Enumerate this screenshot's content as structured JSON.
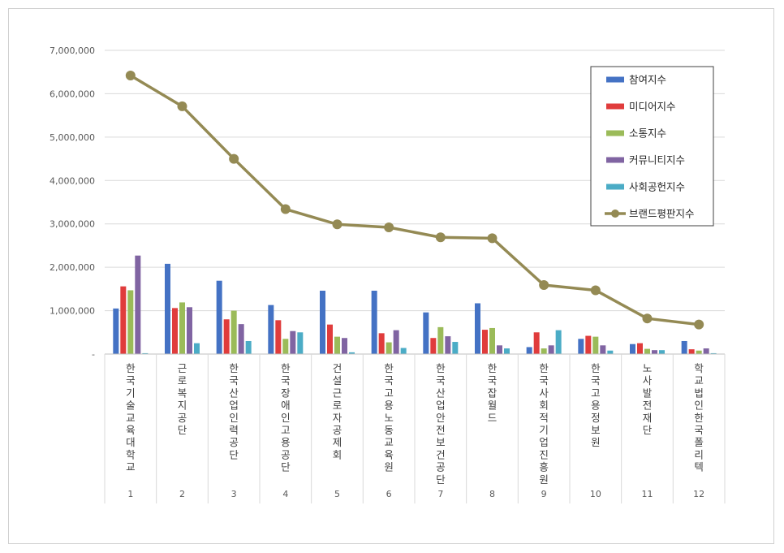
{
  "chart_data": {
    "type": "bar",
    "title": "",
    "xlabel": "",
    "ylabel": "",
    "ylim": [
      0,
      7000000
    ],
    "y_ticks": [
      "-",
      "1,000,000",
      "2,000,000",
      "3,000,000",
      "4,000,000",
      "5,000,000",
      "6,000,000",
      "7,000,000"
    ],
    "grid": true,
    "legend_position": "top-right",
    "categories": [
      "한국기술교육대학교",
      "근로복지공단",
      "한국산업인력공단",
      "한국장애인고용공단",
      "건설근로자공제회",
      "한국고용노동교육원",
      "한국산업안전보건공단",
      "한국잡월드",
      "한국사회적기업진흥원",
      "한국고용정보원",
      "노사발전재단",
      "학교법인한국폴리텍"
    ],
    "ranks": [
      "1",
      "2",
      "3",
      "4",
      "5",
      "6",
      "7",
      "8",
      "9",
      "10",
      "11",
      "12"
    ],
    "series": [
      {
        "name": "참여지수",
        "type": "bar",
        "color": "#4472C4",
        "values": [
          1050000,
          2080000,
          1690000,
          1130000,
          1460000,
          1460000,
          960000,
          1170000,
          160000,
          350000,
          230000,
          300000
        ]
      },
      {
        "name": "미디어지수",
        "type": "bar",
        "color": "#E03C3C",
        "values": [
          1560000,
          1060000,
          800000,
          780000,
          680000,
          480000,
          370000,
          560000,
          500000,
          420000,
          250000,
          110000
        ]
      },
      {
        "name": "소통지수",
        "type": "bar",
        "color": "#9BBB59",
        "values": [
          1470000,
          1190000,
          1000000,
          350000,
          400000,
          270000,
          620000,
          600000,
          130000,
          400000,
          120000,
          80000
        ]
      },
      {
        "name": "커뮤니티지수",
        "type": "bar",
        "color": "#8064A2",
        "values": [
          2270000,
          1080000,
          690000,
          530000,
          370000,
          550000,
          410000,
          200000,
          200000,
          200000,
          90000,
          130000
        ]
      },
      {
        "name": "사회공헌지수",
        "type": "bar",
        "color": "#4BACC6",
        "values": [
          20000,
          250000,
          300000,
          500000,
          40000,
          140000,
          280000,
          130000,
          550000,
          80000,
          90000,
          20000
        ]
      },
      {
        "name": "브랜드평판지수",
        "type": "line",
        "color": "#948A54",
        "values": [
          6420000,
          5710000,
          4500000,
          3340000,
          2990000,
          2920000,
          2690000,
          2670000,
          1590000,
          1470000,
          820000,
          680000
        ]
      }
    ]
  }
}
